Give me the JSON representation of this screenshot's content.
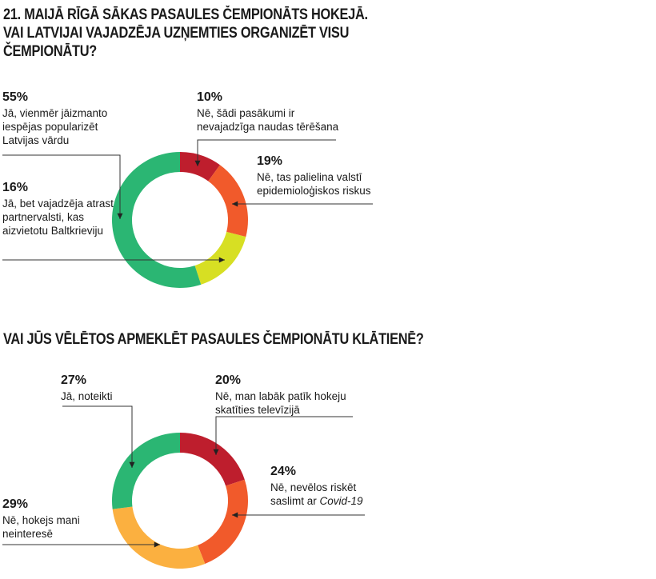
{
  "charts": [
    {
      "title": "21. MAIJĀ RĪGĀ SĀKAS PASAULES ČEMPIONĀTS HOKEJĀ. VAI LATVIJAI VAJADZĒJA UZŅEMTIES ORGANIZĒT VISU ČEMPIONĀTU?",
      "labels": [
        {
          "pct": "10%",
          "text": "Nē, šādi pasākumi ir nevajadzīga naudas tērēšana"
        },
        {
          "pct": "19%",
          "text": "Nē, tas palielina valstī epidemioloģiskos riskus"
        },
        {
          "pct": "16%",
          "text": "Jā, bet vajadzēja atrast partnervalsti, kas aizvietotu Baltkrieviju"
        },
        {
          "pct": "55%",
          "text": "Jā, vienmēr jāizmanto iespējas popularizēt Latvijas vārdu"
        }
      ]
    },
    {
      "title": "VAI JŪS VĒLĒTOS APMEKLĒT PASAULES ČEMPIONĀTU KLĀTIENĒ?",
      "labels": [
        {
          "pct": "20%",
          "text": "Nē, man labāk patīk hokeju skatīties televīzijā"
        },
        {
          "pct": "24%",
          "text_before": "Nē, nevēlos riskēt saslimt ar ",
          "text_em": "Covid-19"
        },
        {
          "pct": "29%",
          "text": "Nē, hokejs mani neinteresē"
        },
        {
          "pct": "27%",
          "text": "Jā, noteikti"
        }
      ]
    }
  ],
  "chart_data": [
    {
      "type": "pie",
      "variant": "donut",
      "title": "21. MAIJĀ RĪGĀ SĀKAS PASAULES ČEMPIONĀTS HOKEJĀ. VAI LATVIJAI VAJADZĒJA UZŅEMTIES ORGANIZĒT VISU ČEMPIONĀTU?",
      "categories": [
        "Nē, šādi pasākumi ir nevajadzīga naudas tērēšana",
        "Nē, tas palielina valstī epidemioloģiskos riskus",
        "Jā, bet vajadzēja atrast partnervalsti, kas aizvietotu Baltkrieviju",
        "Jā, vienmēr jāizmanto iespējas popularizēt Latvijas vārdu"
      ],
      "values": [
        10,
        19,
        16,
        55
      ],
      "colors": [
        "#be1e2d",
        "#f15a2b",
        "#d7df23",
        "#2bb673"
      ]
    },
    {
      "type": "pie",
      "variant": "donut",
      "title": "VAI JŪS VĒLĒTOS APMEKLĒT PASAULES ČEMPIONĀTU KLĀTIENĒ?",
      "categories": [
        "Nē, man labāk patīk hokeju skatīties televīzijā",
        "Nē, nevēlos riskēt saslimt ar Covid-19",
        "Nē, hokejs mani neinteresē",
        "Jā, noteikti"
      ],
      "values": [
        20,
        24,
        29,
        27
      ],
      "colors": [
        "#be1e2d",
        "#f15a2b",
        "#fbb040",
        "#2bb673"
      ]
    }
  ]
}
